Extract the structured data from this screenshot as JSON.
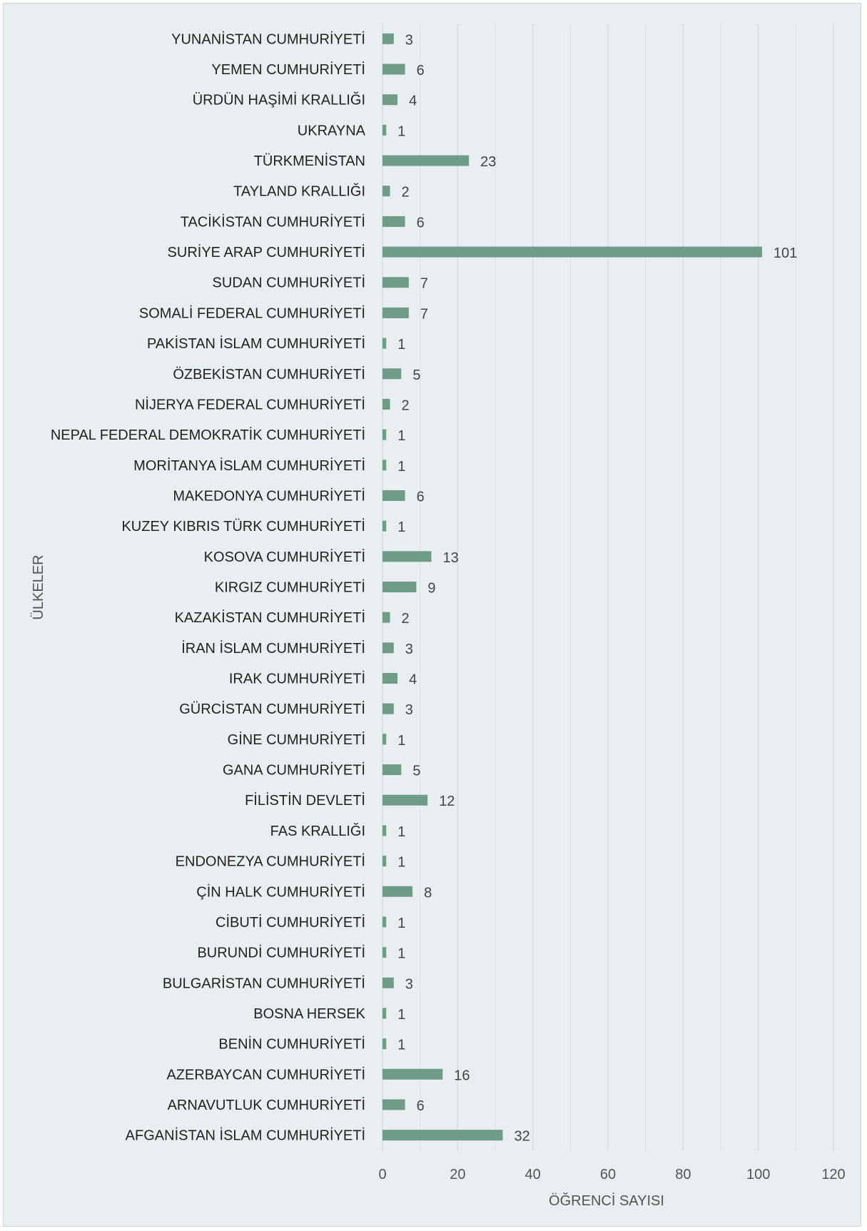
{
  "chart_data": {
    "type": "bar",
    "orientation": "horizontal",
    "xlabel": "ÖĞRENCİ SAYISI",
    "ylabel": "ÜLKELER",
    "xlim": [
      0,
      120
    ],
    "x_ticks": [
      "0",
      "20",
      "40",
      "60",
      "80",
      "100",
      "120"
    ],
    "grid": true,
    "legend": "none",
    "bar_color": "#6e9c88",
    "categories": [
      "YUNANİSTAN CUMHURİYETİ",
      "YEMEN CUMHURİYETİ",
      "ÜRDÜN HAŞİMİ KRALLIĞI",
      "UKRAYNA",
      "TÜRKMENİSTAN",
      "TAYLAND KRALLIĞI",
      "TACİKİSTAN CUMHURİYETİ",
      "SURİYE ARAP CUMHURİYETİ",
      "SUDAN CUMHURİYETİ",
      "SOMALİ FEDERAL CUMHURİYETİ",
      "PAKİSTAN İSLAM CUMHURİYETİ",
      "ÖZBEKİSTAN CUMHURİYETİ",
      "NİJERYA FEDERAL CUMHURİYETİ",
      "NEPAL FEDERAL DEMOKRATİK CUMHURİYETİ",
      "MORİTANYA İSLAM CUMHURİYETİ",
      "MAKEDONYA CUMHURİYETİ",
      "KUZEY KIBRIS TÜRK CUMHURİYETİ",
      "KOSOVA CUMHURİYETİ",
      "KIRGIZ CUMHURİYETİ",
      "KAZAKİSTAN CUMHURİYETİ",
      "İRAN İSLAM CUMHURİYETİ",
      "IRAK CUMHURİYETİ",
      "GÜRCİSTAN CUMHURİYETİ",
      "GİNE CUMHURİYETİ",
      "GANA CUMHURİYETİ",
      "FİLİSTİN DEVLETİ",
      "FAS KRALLIĞI",
      "ENDONEZYA CUMHURİYETİ",
      "ÇİN HALK CUMHURİYETİ",
      "CİBUTİ CUMHURİYETİ",
      "BURUNDİ CUMHURİYETİ",
      "BULGARİSTAN CUMHURİYETİ",
      "BOSNA HERSEK",
      "BENİN CUMHURİYETİ",
      "AZERBAYCAN CUMHURİYETİ",
      "ARNAVUTLUK CUMHURİYETİ",
      "AFGANİSTAN İSLAM CUMHURİYETİ"
    ],
    "values": [
      3,
      6,
      4,
      1,
      23,
      2,
      6,
      101,
      7,
      7,
      1,
      5,
      2,
      1,
      1,
      6,
      1,
      13,
      9,
      2,
      3,
      4,
      3,
      1,
      5,
      12,
      1,
      1,
      8,
      1,
      1,
      3,
      1,
      1,
      16,
      6,
      32
    ]
  }
}
